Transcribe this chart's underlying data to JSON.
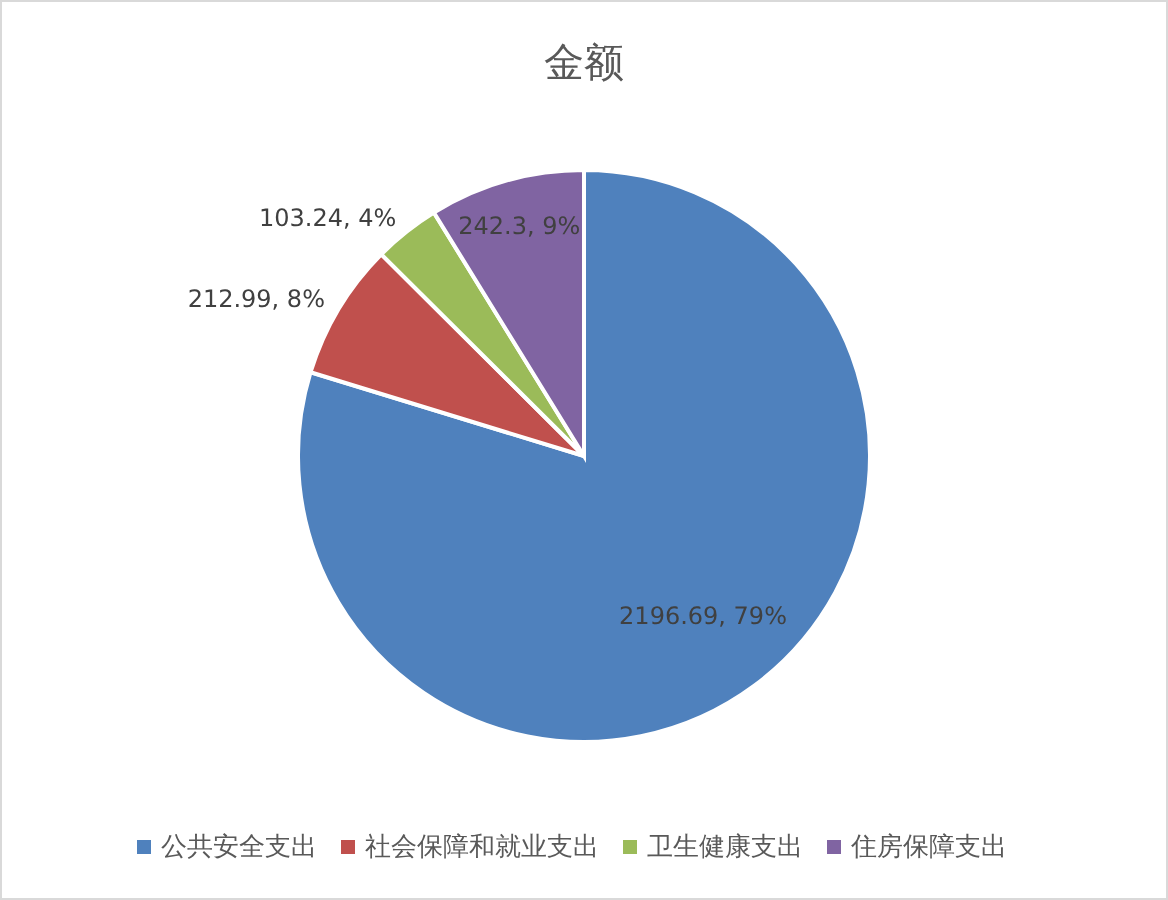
{
  "chart_data": {
    "type": "pie",
    "title": "金额",
    "categories": [
      "公共安全支出",
      "社会保障和就业支出",
      "卫生健康支出",
      "住房保障支出"
    ],
    "values": [
      2196.69,
      212.99,
      103.24,
      242.3
    ],
    "value_labels": [
      "2196.69, 79%",
      "212.99, 8%",
      "103.24, 4%",
      "242.3, 9%"
    ],
    "colors": [
      "#4f81bd",
      "#c0504d",
      "#9bbb59",
      "#8064a2"
    ],
    "legend": "bottom"
  }
}
